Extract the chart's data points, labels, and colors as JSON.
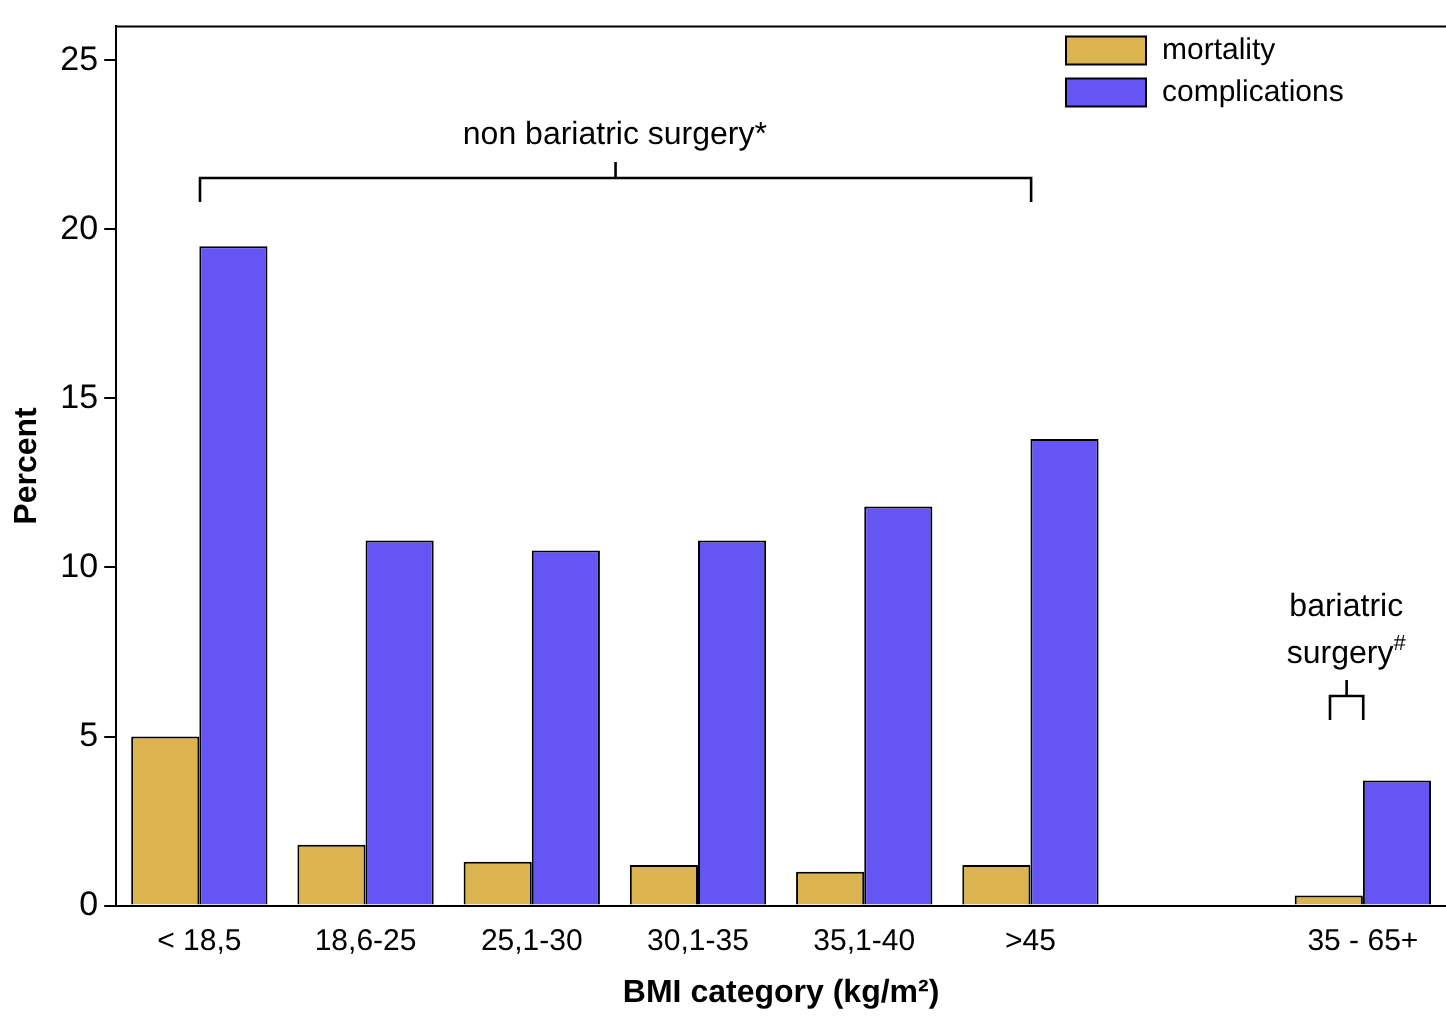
{
  "chart_data": {
    "type": "bar",
    "xlabel": "BMI category (kg/m²)",
    "ylabel": "Percent",
    "categories": [
      "< 18,5",
      "18,6-25",
      "25,1-30",
      "30,1-35",
      "35,1-40",
      ">45",
      null,
      "35 - 65+"
    ],
    "series": [
      {
        "name": "mortality",
        "color": "#dbb44f",
        "values": [
          5.0,
          1.8,
          1.3,
          1.2,
          1.0,
          1.2,
          null,
          0.3
        ]
      },
      {
        "name": "complications",
        "color": "#6655f5",
        "values": [
          19.5,
          10.8,
          10.5,
          10.8,
          11.8,
          13.8,
          null,
          3.7
        ]
      }
    ],
    "ylim": [
      0,
      26
    ],
    "yticks": [
      0,
      5,
      10,
      15,
      20,
      25
    ],
    "grid": false,
    "legend": "top right",
    "annotations": [
      "non bariatric surgery*",
      "bariatric surgery$^{#}$"
    ]
  }
}
